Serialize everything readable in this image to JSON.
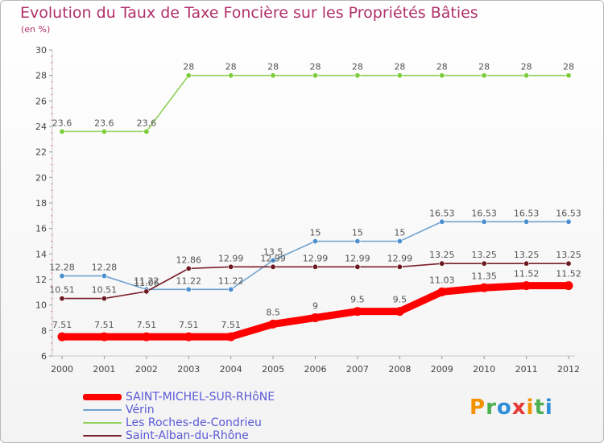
{
  "title": "Evolution du Taux de Taxe Foncière sur les Propriétés Bâties",
  "subtitle": "(en %)",
  "logo": {
    "text": "Proxiti",
    "colors": [
      "#f39200",
      "#4caf50",
      "#2e8fd6",
      "#e53935",
      "#f39200",
      "#4caf50",
      "#2e8fd6"
    ]
  },
  "chart_data": {
    "type": "line",
    "title": "Evolution du Taux de Taxe Foncière sur les Propriétés Bâties",
    "ylabel": "(en %)",
    "xlabel": "",
    "ylim": [
      6,
      30
    ],
    "yticks": [
      6,
      8,
      10,
      12,
      14,
      16,
      18,
      20,
      22,
      24,
      26,
      28,
      30
    ],
    "x": [
      "2000",
      "2001",
      "2002",
      "2003",
      "2004",
      "2005",
      "2006",
      "2007",
      "2008",
      "2009",
      "2010",
      "2011",
      "2012"
    ],
    "legend_position": "bottom-left",
    "grid": false,
    "series": [
      {
        "name": "Les Roches-de-Condrieu",
        "color": "#8fd15a",
        "dot": "#7ccc3c",
        "values": [
          23.6,
          23.6,
          23.6,
          28,
          28,
          28,
          28,
          28,
          28,
          28,
          28,
          28,
          28
        ],
        "labels": [
          "23.6",
          "23.6",
          "23.6",
          "28",
          "28",
          "28",
          "28",
          "28",
          "28",
          "28",
          "28",
          "28",
          "28"
        ]
      },
      {
        "name": "Vérin",
        "color": "#6fa3cf",
        "dot": "#4b8fd0",
        "values": [
          12.28,
          12.28,
          11.22,
          11.22,
          11.22,
          13.5,
          15,
          15,
          15,
          16.53,
          16.53,
          16.53,
          16.53
        ],
        "labels": [
          "12.28",
          "12.28",
          "11.22",
          "11.22",
          "11.22",
          "13.5",
          "15",
          "15",
          "15",
          "16.53",
          "16.53",
          "16.53",
          "16.53"
        ]
      },
      {
        "name": "Saint-Alban-du-Rhône",
        "color": "#7a1f2b",
        "dot": "#6b1a22",
        "values": [
          10.51,
          10.51,
          11.06,
          12.86,
          12.99,
          12.99,
          12.99,
          12.99,
          12.99,
          13.25,
          13.25,
          13.25,
          13.25
        ],
        "labels": [
          "10.51",
          "10.51",
          "11.06",
          "12.86",
          "12.99",
          "12.99",
          "12.99",
          "12.99",
          "12.99",
          "13.25",
          "13.25",
          "13.25",
          "13.25"
        ]
      },
      {
        "name": "SAINT-MICHEL-SUR-RHôNE",
        "color": "#ff0000",
        "dot": "#ff0000",
        "bold": true,
        "values": [
          7.51,
          7.51,
          7.51,
          7.51,
          7.51,
          8.5,
          9,
          9.5,
          9.5,
          11.03,
          11.35,
          11.52,
          11.52
        ],
        "labels": [
          "7.51",
          "7.51",
          "7.51",
          "7.51",
          "7.51",
          "8.5",
          "9",
          "9.5",
          "9.5",
          "11.03",
          "11.35",
          "11.52",
          "11.52"
        ]
      }
    ],
    "legend_order": [
      "SAINT-MICHEL-SUR-RHôNE",
      "Vérin",
      "Les Roches-de-Condrieu",
      "Saint-Alban-du-Rhône"
    ]
  }
}
